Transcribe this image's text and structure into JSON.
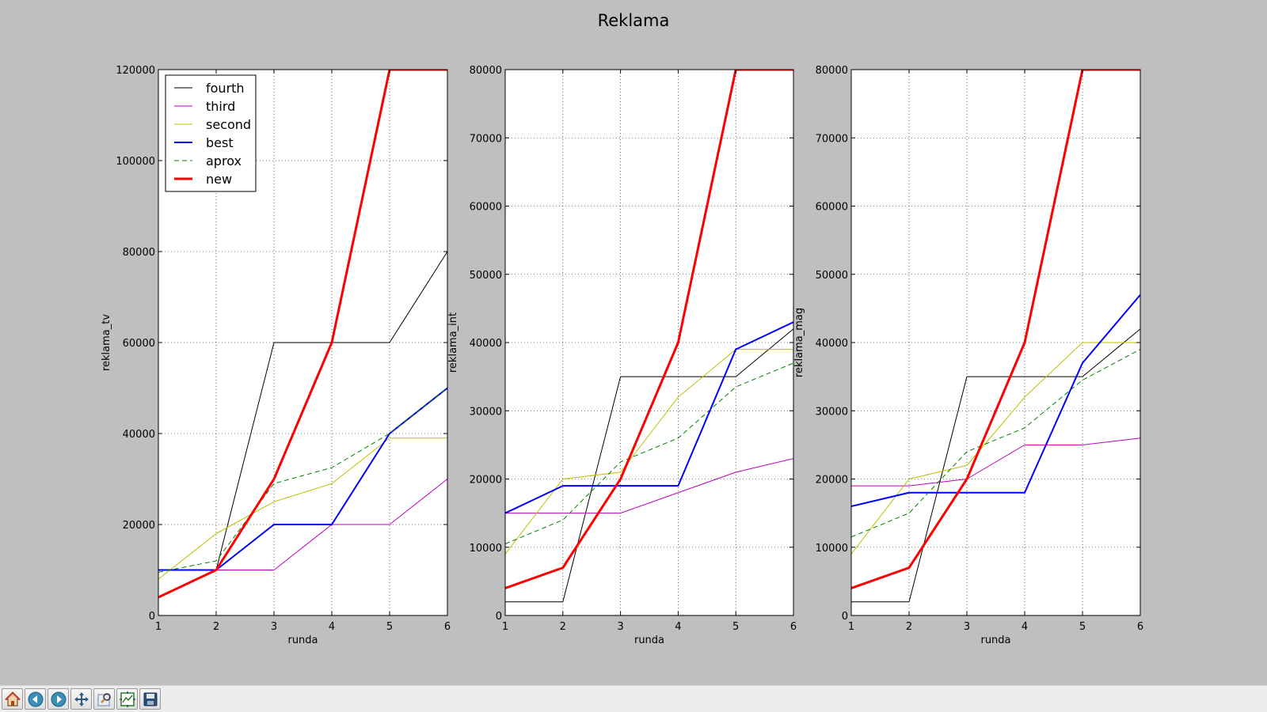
{
  "figure": {
    "title": "Reklama"
  },
  "series_style": [
    {
      "name": "fourth",
      "color": "#000000",
      "width": 1,
      "dash": ""
    },
    {
      "name": "third",
      "color": "#bf00bf",
      "width": 1,
      "dash": ""
    },
    {
      "name": "second",
      "color": "#bfbf00",
      "width": 1,
      "dash": ""
    },
    {
      "name": "best",
      "color": "#0000ff",
      "width": 2,
      "dash": ""
    },
    {
      "name": "aprox",
      "color": "#008000",
      "width": 1,
      "dash": "6,4"
    },
    {
      "name": "new",
      "color": "#ff0000",
      "width": 3,
      "dash": ""
    }
  ],
  "chart_data": [
    {
      "type": "line",
      "title": "Reklama",
      "xlabel": "runda",
      "ylabel": "reklama_tv",
      "xlim": [
        1,
        6
      ],
      "ylim": [
        0,
        120000
      ],
      "xticks": [
        1,
        2,
        3,
        4,
        5,
        6
      ],
      "yticks": [
        0,
        20000,
        40000,
        60000,
        80000,
        100000,
        120000
      ],
      "grid": true,
      "legend": "upper-left",
      "x": [
        1,
        2,
        3,
        4,
        5,
        6
      ],
      "series": [
        {
          "name": "fourth",
          "values": [
            10000,
            10000,
            60000,
            60000,
            60000,
            80000
          ]
        },
        {
          "name": "third",
          "values": [
            10000,
            10000,
            10000,
            20000,
            20000,
            30000
          ]
        },
        {
          "name": "second",
          "values": [
            8000,
            18000,
            25000,
            29000,
            39000,
            39000
          ]
        },
        {
          "name": "best",
          "values": [
            10000,
            10000,
            20000,
            20000,
            40000,
            50000
          ]
        },
        {
          "name": "aprox",
          "values": [
            9500,
            12000,
            29000,
            32500,
            40000,
            50000
          ]
        },
        {
          "name": "new",
          "values": [
            4000,
            10000,
            30000,
            60000,
            120000,
            120000
          ]
        }
      ]
    },
    {
      "type": "line",
      "xlabel": "runda",
      "ylabel": "reklama_int",
      "xlim": [
        1,
        6
      ],
      "ylim": [
        0,
        80000
      ],
      "xticks": [
        1,
        2,
        3,
        4,
        5,
        6
      ],
      "yticks": [
        0,
        10000,
        20000,
        30000,
        40000,
        50000,
        60000,
        70000,
        80000
      ],
      "grid": true,
      "x": [
        1,
        2,
        3,
        4,
        5,
        6
      ],
      "series": [
        {
          "name": "fourth",
          "values": [
            2000,
            2000,
            35000,
            35000,
            35000,
            42000
          ]
        },
        {
          "name": "third",
          "values": [
            15000,
            15000,
            15000,
            18000,
            21000,
            23000
          ]
        },
        {
          "name": "second",
          "values": [
            9000,
            20000,
            21000,
            32000,
            39000,
            39000
          ]
        },
        {
          "name": "best",
          "values": [
            15000,
            19000,
            19000,
            19000,
            39000,
            43000
          ]
        },
        {
          "name": "aprox",
          "values": [
            10500,
            14000,
            22500,
            26000,
            33500,
            37000
          ]
        },
        {
          "name": "new",
          "values": [
            4000,
            7000,
            20000,
            40000,
            80000,
            80000
          ]
        }
      ]
    },
    {
      "type": "line",
      "xlabel": "runda",
      "ylabel": "reklama_mag",
      "xlim": [
        1,
        6
      ],
      "ylim": [
        0,
        80000
      ],
      "xticks": [
        1,
        2,
        3,
        4,
        5,
        6
      ],
      "yticks": [
        0,
        10000,
        20000,
        30000,
        40000,
        50000,
        60000,
        70000,
        80000
      ],
      "grid": true,
      "x": [
        1,
        2,
        3,
        4,
        5,
        6
      ],
      "series": [
        {
          "name": "fourth",
          "values": [
            2000,
            2000,
            35000,
            35000,
            35000,
            42000
          ]
        },
        {
          "name": "third",
          "values": [
            19000,
            19000,
            20000,
            25000,
            25000,
            26000
          ]
        },
        {
          "name": "second",
          "values": [
            9000,
            20000,
            22000,
            32000,
            40000,
            40000
          ]
        },
        {
          "name": "best",
          "values": [
            16000,
            18000,
            18000,
            18000,
            37000,
            47000
          ]
        },
        {
          "name": "aprox",
          "values": [
            11500,
            15000,
            24000,
            27500,
            34500,
            39000
          ]
        },
        {
          "name": "new",
          "values": [
            4000,
            7000,
            20000,
            40000,
            80000,
            80000
          ]
        }
      ]
    }
  ],
  "toolbar": {
    "buttons": [
      {
        "icon": "home-icon"
      },
      {
        "icon": "back-icon"
      },
      {
        "icon": "forward-icon"
      },
      {
        "icon": "pan-icon"
      },
      {
        "icon": "zoom-icon"
      },
      {
        "icon": "subplots-icon"
      },
      {
        "icon": "save-icon"
      }
    ]
  }
}
